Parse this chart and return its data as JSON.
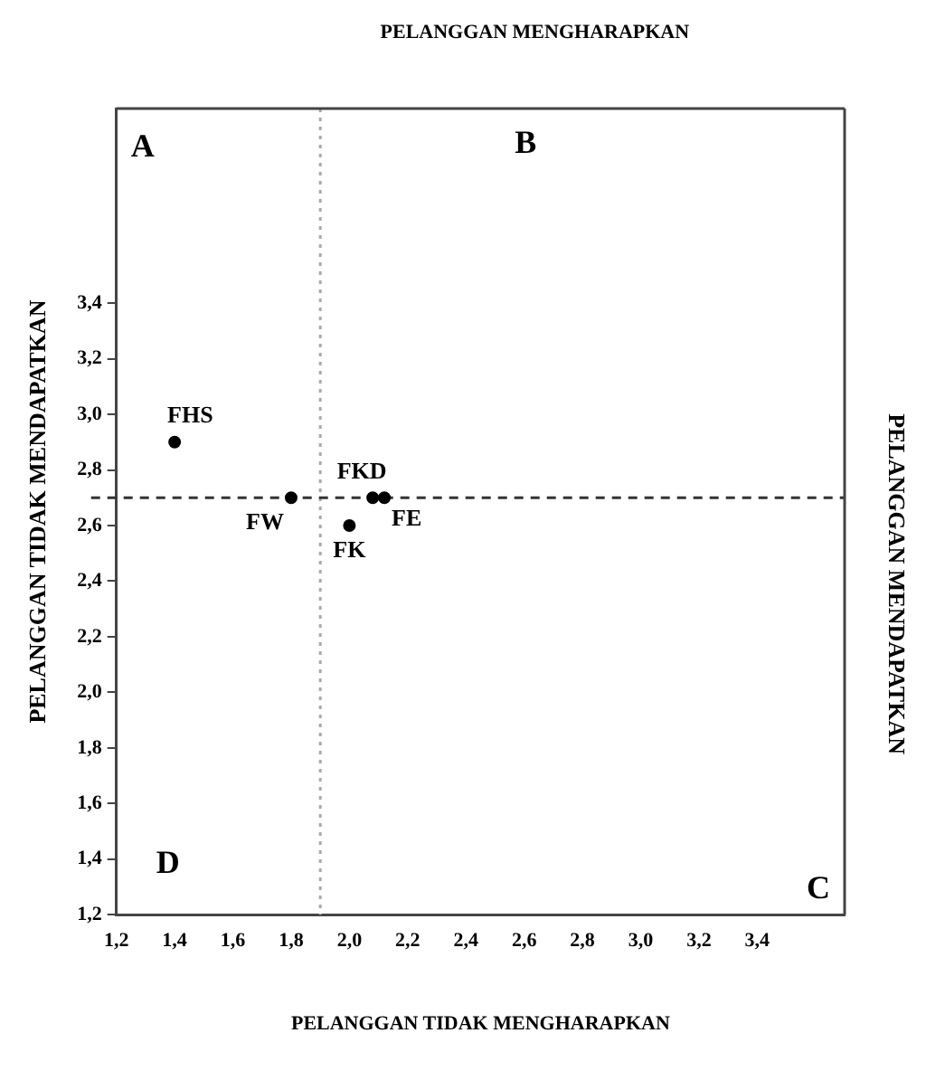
{
  "chart_data": {
    "type": "scatter",
    "xlabel": "PELANGGAN TIDAK MENGHARAPKAN",
    "x2label": "PELANGGAN MENGHARAPKAN",
    "ylabel": "PELANGGAN TIDAK MENDAPATKAN",
    "y2label": "PELANGGAN MENDAPATKAN",
    "annotations": [
      "A",
      "B",
      "C",
      "D"
    ],
    "series": [
      {
        "name": "FHS",
        "color": "#000000",
        "x": [
          1.4
        ],
        "values": [
          2.9
        ]
      },
      {
        "name": "FW",
        "color": "#000000",
        "x": [
          1.8
        ],
        "values": [
          2.7
        ]
      },
      {
        "name": "FK",
        "color": "#000000",
        "x": [
          2.0
        ],
        "values": [
          2.6
        ]
      },
      {
        "name": "FKD",
        "color": "#000000",
        "x": [
          2.08
        ],
        "values": [
          2.7
        ]
      },
      {
        "name": "FE",
        "color": "#000000",
        "x": [
          2.12
        ],
        "values": [
          2.7
        ]
      }
    ],
    "xlim": [
      1.2,
      3.7
    ],
    "ylim": [
      1.2,
      4.1
    ],
    "xticks": [
      {
        "value": 1.2,
        "label": "1,2"
      },
      {
        "value": 1.4,
        "label": "1,4"
      },
      {
        "value": 1.6,
        "label": "1,6"
      },
      {
        "value": 1.8,
        "label": "1,8"
      },
      {
        "value": 2.0,
        "label": "2,0"
      },
      {
        "value": 2.2,
        "label": "2,2"
      },
      {
        "value": 2.4,
        "label": "2,4"
      },
      {
        "value": 2.6,
        "label": "2,6"
      },
      {
        "value": 2.8,
        "label": "2,8"
      },
      {
        "value": 3.0,
        "label": "3,0"
      },
      {
        "value": 3.2,
        "label": "3,2"
      },
      {
        "value": 3.4,
        "label": "3,4"
      }
    ],
    "yticks": [
      {
        "value": 1.2,
        "label": "1,2"
      },
      {
        "value": 1.4,
        "label": "1,4"
      },
      {
        "value": 1.6,
        "label": "1,6"
      },
      {
        "value": 1.8,
        "label": "1,8"
      },
      {
        "value": 2.0,
        "label": "2,0"
      },
      {
        "value": 2.2,
        "label": "2,2"
      },
      {
        "value": 2.4,
        "label": "2,4"
      },
      {
        "value": 2.6,
        "label": "2,6"
      },
      {
        "value": 2.8,
        "label": "2,8"
      },
      {
        "value": 3.0,
        "label": "3,0"
      },
      {
        "value": 3.2,
        "label": "3,2"
      },
      {
        "value": 3.4,
        "label": "3,4"
      }
    ],
    "ref_lines": [
      {
        "axis": "x",
        "value": 1.9,
        "color": "#aaaaaa",
        "line_style": "dotted"
      },
      {
        "axis": "y",
        "value": 2.7,
        "color": "#333333",
        "line_style": "dashed"
      }
    ],
    "grid": false,
    "legend": false,
    "marker": "circle"
  }
}
